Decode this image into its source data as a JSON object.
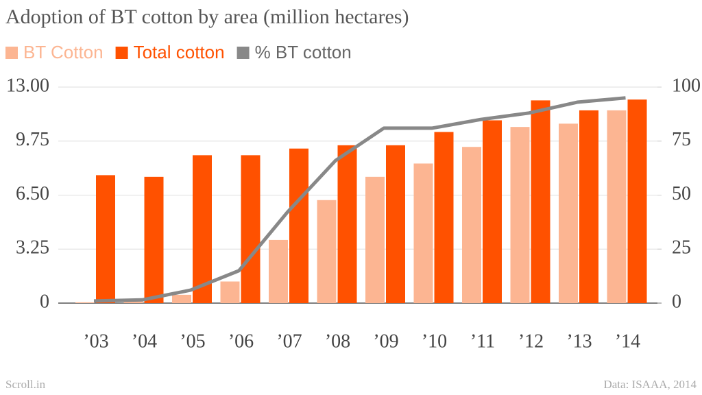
{
  "chart_data": {
    "type": "bar",
    "title": "Adoption of BT cotton by area (million hectares)",
    "categories": [
      "’03",
      "’04",
      "’05",
      "’06",
      "’07",
      "’08",
      "’09",
      "’10",
      "’11",
      "’12",
      "’13",
      "’14"
    ],
    "series": [
      {
        "name": "BT Cotton",
        "color": "#fcb592",
        "values": [
          0.05,
          0.1,
          0.5,
          1.3,
          3.8,
          6.2,
          7.6,
          8.4,
          9.4,
          10.6,
          10.8,
          11.6
        ]
      },
      {
        "name": "Total cotton",
        "color": "#ff5100",
        "values": [
          7.7,
          7.6,
          8.9,
          8.9,
          9.3,
          9.5,
          9.5,
          10.3,
          11.0,
          12.2,
          11.6,
          12.25
        ]
      },
      {
        "name": "% BT cotton",
        "color": "#888888",
        "type": "line",
        "axis": "y2",
        "values": [
          1,
          1.5,
          6,
          15,
          42,
          66,
          81,
          81,
          85,
          88,
          93,
          95
        ]
      }
    ],
    "ylim": [
      0,
      13
    ],
    "yticks": [
      0,
      {
        "value": 3.25,
        "label": "3.25"
      },
      {
        "value": 6.5,
        "label": "6.50"
      },
      {
        "value": 9.75,
        "label": "9.75"
      },
      {
        "value": 13,
        "label": "13.00"
      }
    ],
    "y2lim": [
      0,
      100
    ],
    "y2ticks": [
      0,
      25,
      50,
      75,
      100
    ],
    "grid": true,
    "source": "Data: ISAAA, 2014",
    "publisher": "Scroll.in"
  }
}
